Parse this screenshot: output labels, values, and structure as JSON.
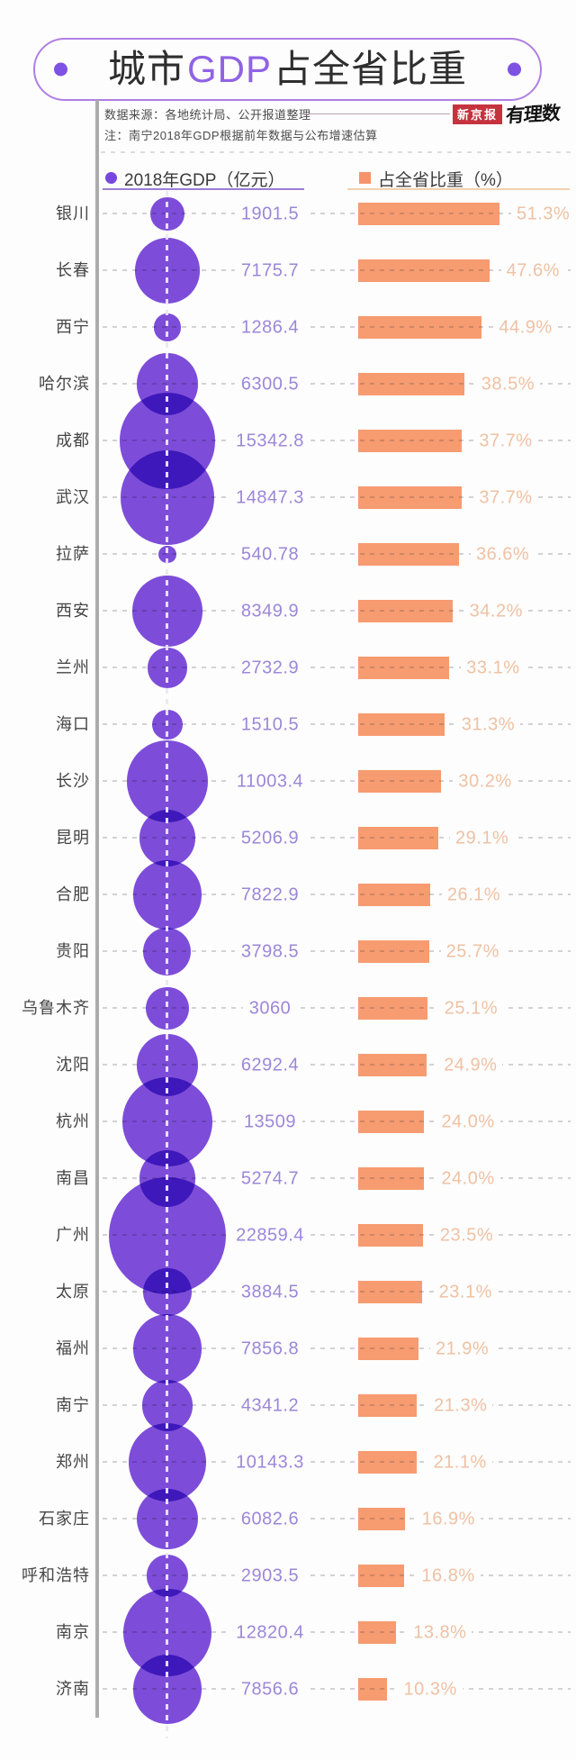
{
  "title": {
    "prefix": "城市",
    "gdp": "GDP",
    "suffix": "占全省比重"
  },
  "header": {
    "source": "数据来源：各地统计局、公开报道整理",
    "note": "注：南宁2018年GDP根据前年数据与公布增速估算",
    "brand_badge": "新京报",
    "brand_name": "有理数"
  },
  "legend": {
    "gdp_label": "2018年GDP（亿元）",
    "share_label": "占全省比重（%）"
  },
  "colors": {
    "bubble_purple": "#7E4DDB",
    "bubble_overlap": "#5A1ED7",
    "bar_orange": "#F79B70",
    "gdp_value_text": "#9C87D9",
    "share_value_text": "#EFC1A3",
    "accent_purple": "#7E52E2",
    "banner_border": "#AF7FE4",
    "badge_red": "#C5333E"
  },
  "chart_data": {
    "type": "bubble-bar",
    "title": "城市GDP占全省比重",
    "legend_position": "top",
    "grid": false,
    "categories": [
      "银川",
      "长春",
      "西宁",
      "哈尔滨",
      "成都",
      "武汉",
      "拉萨",
      "西安",
      "兰州",
      "海口",
      "长沙",
      "昆明",
      "合肥",
      "贵阳",
      "乌鲁木齐",
      "沈阳",
      "杭州",
      "南昌",
      "广州",
      "太原",
      "福州",
      "南宁",
      "郑州",
      "石家庄",
      "呼和浩特",
      "南京",
      "济南"
    ],
    "series": [
      {
        "name": "2018年GDP（亿元）",
        "values": [
          1901.5,
          7175.7,
          1286.4,
          6300.5,
          15342.8,
          14847.3,
          540.78,
          8349.9,
          2732.9,
          1510.5,
          11003.4,
          5206.9,
          7822.9,
          3798.5,
          3060,
          6292.4,
          13509,
          5274.7,
          22859.4,
          3884.5,
          7856.8,
          4341.2,
          10143.3,
          6082.6,
          2903.5,
          12820.4,
          7856.6
        ]
      },
      {
        "name": "占全省比重（%）",
        "values": [
          51.3,
          47.6,
          44.9,
          38.5,
          37.7,
          37.7,
          36.6,
          34.2,
          33.1,
          31.3,
          30.2,
          29.1,
          26.1,
          25.7,
          25.1,
          24.9,
          24.0,
          24.0,
          23.5,
          23.1,
          21.9,
          21.3,
          21.1,
          16.9,
          16.8,
          13.8,
          10.3
        ]
      }
    ],
    "gdp_display": [
      "1901.5",
      "7175.7",
      "1286.4",
      "6300.5",
      "15342.8",
      "14847.3",
      "540.78",
      "8349.9",
      "2732.9",
      "1510.5",
      "11003.4",
      "5206.9",
      "7822.9",
      "3798.5",
      "3060",
      "6292.4",
      "13509",
      "5274.7",
      "22859.4",
      "3884.5",
      "7856.8",
      "4341.2",
      "10143.3",
      "6082.6",
      "2903.5",
      "12820.4",
      "7856.6"
    ],
    "share_display": [
      "51.3%",
      "47.6%",
      "44.9%",
      "38.5%",
      "37.7%",
      "37.7%",
      "36.6%",
      "34.2%",
      "33.1%",
      "31.3%",
      "30.2%",
      "29.1%",
      "26.1%",
      "25.7%",
      "25.1%",
      "24.9%",
      "24.0%",
      "24.0%",
      "23.5%",
      "23.1%",
      "21.9%",
      "21.3%",
      "21.1%",
      "16.9%",
      "16.8%",
      "13.8%",
      "10.3%"
    ]
  }
}
